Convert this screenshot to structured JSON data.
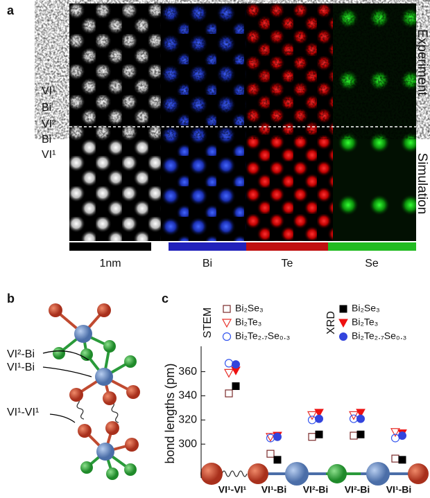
{
  "panel_a": {
    "label": "a",
    "layer_labels": [
      "VI¹",
      "Bi",
      "VI²",
      "Bi",
      "VI¹"
    ],
    "row_labels": [
      "Experiment",
      "Simulation"
    ],
    "scale_labels": [
      "1nm",
      "Bi",
      "Te",
      "Se"
    ]
  },
  "panel_b": {
    "label": "b",
    "bond_labels": [
      "VI²-Bi",
      "VI¹-Bi",
      "VI¹-VI¹"
    ]
  },
  "panel_c": {
    "label": "c"
  },
  "chart_data": {
    "type": "scatter",
    "y_label": "bond lengths (pm)",
    "legend_titles": [
      "STEM",
      "XRD"
    ],
    "categories": [
      "VI¹-VI¹",
      "VI¹-Bi",
      "VI²-Bi",
      "VI²-Bi",
      "VI¹-Bi"
    ],
    "ylim": [
      272,
      381
    ],
    "yticks": [
      300,
      320,
      340,
      360
    ],
    "series": [
      {
        "name": "Bi₂Se₃",
        "group": 0,
        "marker": "square",
        "filled": false,
        "color": "#7a2a2a",
        "values": [
          342,
          292,
          306,
          307,
          288
        ]
      },
      {
        "name": "Bi₂Te₃",
        "group": 0,
        "marker": "triangle",
        "filled": false,
        "color": "#e8302a",
        "values": [
          359,
          306,
          324,
          324,
          310
        ]
      },
      {
        "name": "Bi₂Te₂.₇Se₀.₃",
        "group": 0,
        "marker": "circle",
        "filled": false,
        "color": "#3355ee",
        "values": [
          367,
          305,
          320,
          321,
          305
        ]
      },
      {
        "name": "Bi₂Se₃",
        "group": 1,
        "marker": "square",
        "filled": true,
        "color": "#000000",
        "values": [
          348,
          287,
          308,
          308,
          287
        ]
      },
      {
        "name": "Bi₂Te₃",
        "group": 1,
        "marker": "triangle",
        "filled": true,
        "color": "#ee1111",
        "values": [
          361,
          307,
          326,
          326,
          309
        ]
      },
      {
        "name": "Bi₂Te₂.₇Se₀.₃",
        "group": 1,
        "marker": "circle",
        "filled": true,
        "color": "#3344dd",
        "values": [
          366,
          306,
          321,
          321,
          307
        ]
      }
    ]
  }
}
